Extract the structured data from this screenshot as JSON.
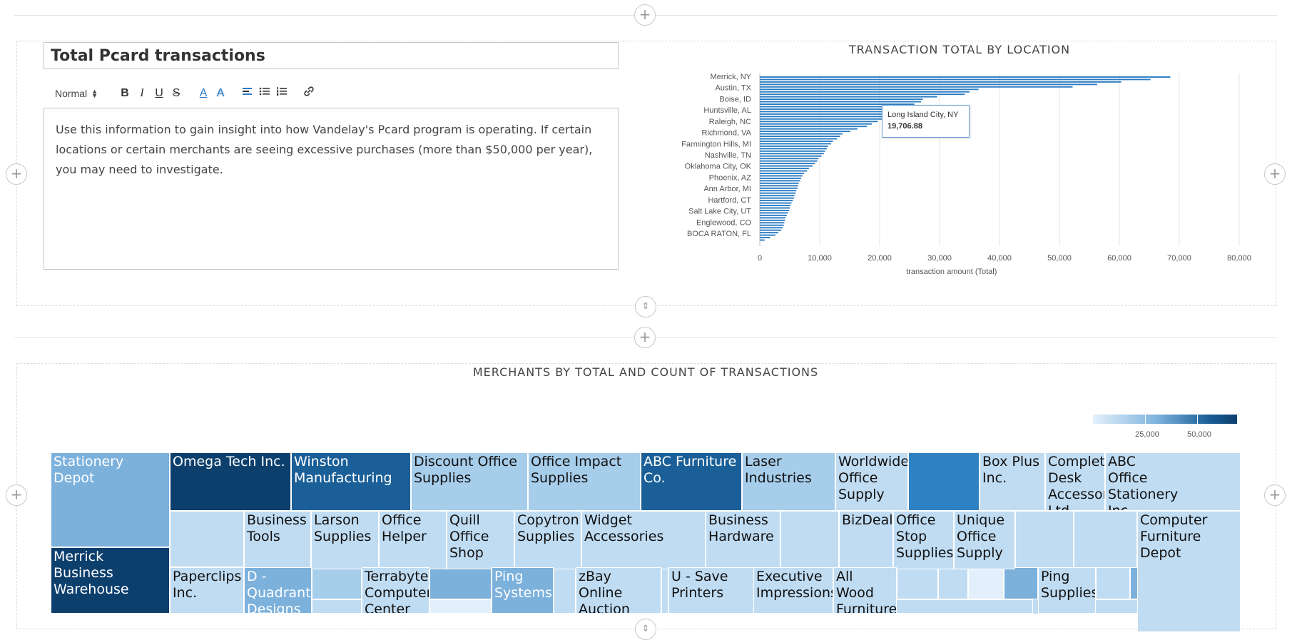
{
  "text_panel": {
    "title": "Total Pcard transactions",
    "toolbar": {
      "format_select": "Normal",
      "bold": "B",
      "italic": "I",
      "underline": "U",
      "strike": "S",
      "font_color": "A",
      "bg_color": "A"
    },
    "body": "Use this information to gain insight into how Vandelay's Pcard program is operating. If certain locations or certain merchants are seeing excessive purchases (more than $50,000 per year), you may need to investigate."
  },
  "bar_chart": {
    "title": "TRANSACTION TOTAL BY LOCATION",
    "y_tick_labels": [
      "Merrick, NY",
      "Austin, TX",
      "Boise, ID",
      "Huntsville, AL",
      "Raleigh, NC",
      "Richmond, VA",
      "Farmington Hills, MI",
      "Nashville, TN",
      "Oklahoma City, OK",
      "Phoenix, AZ",
      "Ann Arbor, MI",
      "Hartford, CT",
      "Salt Lake City, UT",
      "Englewood, CO",
      "BOCA RATON, FL"
    ],
    "x_tick_labels": [
      "0",
      "10,000",
      "20,000",
      "30,000",
      "40,000",
      "50,000",
      "60,000",
      "70,000",
      "80,000"
    ],
    "x_axis_label": "transaction amount (Total)",
    "tooltip": {
      "label": "Long Island City, NY",
      "value": "19,706.88"
    },
    "bar_color": "#2b7cc2"
  },
  "chart_data": {
    "type": "bar",
    "orientation": "horizontal",
    "title": "TRANSACTION TOTAL BY LOCATION",
    "xlabel": "transaction amount (Total)",
    "ylabel": "",
    "xlim": [
      0,
      80000
    ],
    "labeled_categories": [
      "Merrick, NY",
      "Austin, TX",
      "Boise, ID",
      "Huntsville, AL",
      "Raleigh, NC",
      "Richmond, VA",
      "Farmington Hills, MI",
      "Nashville, TN",
      "Oklahoma City, OK",
      "Phoenix, AZ",
      "Ann Arbor, MI",
      "Hartford, CT",
      "Salt Lake City, UT",
      "Englewood, CO",
      "BOCA RATON, FL"
    ],
    "values": [
      68500,
      65200,
      60300,
      56300,
      52200,
      36500,
      35000,
      34200,
      29600,
      27200,
      26900,
      25800,
      25200,
      24200,
      23300,
      21900,
      21100,
      20500,
      19706.88,
      18700,
      17900,
      16300,
      15100,
      13800,
      13400,
      12900,
      12200,
      11900,
      11400,
      11200,
      10900,
      10700,
      10300,
      9800,
      9600,
      9200,
      8800,
      8200,
      7900,
      7400,
      7100,
      6900,
      6700,
      6500,
      6400,
      6300,
      6100,
      6000,
      5800,
      5700,
      5500,
      5300,
      5100,
      5000,
      4900,
      4700,
      4500,
      4300,
      4200,
      4100,
      4000,
      3800,
      3600,
      3100,
      2600,
      1700,
      800
    ],
    "highlighted": {
      "category": "Long Island City, NY",
      "value": 19706.88
    },
    "grid": true
  },
  "treemap": {
    "title": "MERCHANTS BY TOTAL AND COUNT OF TRANSACTIONS",
    "legend": {
      "ticks": [
        "25,000",
        "50,000"
      ]
    },
    "cells": [
      {
        "name": "Stationery Depot",
        "lines": [
          "Stationery Depot"
        ],
        "shade": 3
      },
      {
        "name": "Omega Tech Inc.",
        "lines": [
          "Omega Tech Inc."
        ],
        "shade": 6
      },
      {
        "name": "Winston Manufacturing",
        "lines": [
          "Winston",
          "Manufacturing"
        ],
        "shade": 5
      },
      {
        "name": "Discount Office Supplies",
        "lines": [
          "Discount Office",
          "Supplies"
        ],
        "shade": 2
      },
      {
        "name": "Office Impact Supplies",
        "lines": [
          "Office Impact",
          "Supplies"
        ],
        "shade": 2
      },
      {
        "name": "ABC Furniture Co.",
        "lines": [
          "ABC Furniture",
          "Co."
        ],
        "shade": 5
      },
      {
        "name": "Laser Industries",
        "lines": [
          "Laser",
          "Industries"
        ],
        "shade": 2
      },
      {
        "name": "Worldwide Office Supply",
        "lines": [
          "Worldwide",
          "Office",
          "Supply"
        ],
        "shade": 1
      },
      {
        "name": "",
        "lines": [],
        "shade": 4
      },
      {
        "name": "Box Plus Inc.",
        "lines": [
          "Box Plus",
          "Inc."
        ],
        "shade": 1
      },
      {
        "name": "Complete Desk Accessories Ltd.",
        "lines": [
          "Complete",
          "Desk",
          "Accessories",
          "Ltd."
        ],
        "shade": 1
      },
      {
        "name": "ABC Office Stationery Inc.",
        "lines": [
          "ABC",
          "Office",
          "Stationery",
          "Inc."
        ],
        "shade": 1
      },
      {
        "name": "Merrick Business Warehouse",
        "lines": [
          "Merrick Business",
          "Warehouse"
        ],
        "shade": 6
      },
      {
        "name": "Business Tools",
        "lines": [
          "Business",
          "Tools"
        ],
        "shade": 1
      },
      {
        "name": "Larson Supplies",
        "lines": [
          "Larson",
          "Supplies"
        ],
        "shade": 1
      },
      {
        "name": "Office Helper",
        "lines": [
          "Office",
          "Helper"
        ],
        "shade": 1
      },
      {
        "name": "Quill Office Shop",
        "lines": [
          "Quill",
          "Office",
          "Shop"
        ],
        "shade": 1
      },
      {
        "name": "Copytron Supplies",
        "lines": [
          "Copytron",
          "Supplies"
        ],
        "shade": 1
      },
      {
        "name": "Widget Accessories",
        "lines": [
          "Widget",
          "Accessories"
        ],
        "shade": 1
      },
      {
        "name": "Business Hardware",
        "lines": [
          "Business",
          "Hardware"
        ],
        "shade": 1
      },
      {
        "name": "BizDeals",
        "lines": [
          "BizDeals"
        ],
        "shade": 1
      },
      {
        "name": "Office Stop Supplies",
        "lines": [
          "Office",
          "Stop",
          "Supplies"
        ],
        "shade": 1
      },
      {
        "name": "Unique Office Supply",
        "lines": [
          "Unique",
          "Office",
          "Supply"
        ],
        "shade": 1
      },
      {
        "name": "Computer Furniture Depot",
        "lines": [
          "Computer",
          "Furniture",
          "Depot"
        ],
        "shade": 1
      },
      {
        "name": "Paperclips Inc.",
        "lines": [
          "Paperclips",
          "Inc."
        ],
        "shade": 1
      },
      {
        "name": "D - Quadrant Designs",
        "lines": [
          "D -",
          "Quadrant",
          "Designs"
        ],
        "shade": 3
      },
      {
        "name": "Terrabyte Computer Center",
        "lines": [
          "Terrabyte",
          "Computer",
          "Center"
        ],
        "shade": 1
      },
      {
        "name": "Ping Systems",
        "lines": [
          "Ping",
          "Systems"
        ],
        "shade": 3
      },
      {
        "name": "zBay Online Auction",
        "lines": [
          "zBay",
          "Online",
          "Auction"
        ],
        "shade": 1
      },
      {
        "name": "U - Save Printers",
        "lines": [
          "U - Save",
          "Printers"
        ],
        "shade": 1
      },
      {
        "name": "Executive Impressions",
        "lines": [
          "Executive",
          "Impressions"
        ],
        "shade": 1
      },
      {
        "name": "All Wood Furniture",
        "lines": [
          "All",
          "Wood",
          "Furniture"
        ],
        "shade": 1
      },
      {
        "name": "Ping Supplies",
        "lines": [
          "Ping",
          "Supplies"
        ],
        "shade": 1
      }
    ]
  },
  "colors": {
    "shade_0": "#e3f0fb",
    "shade_1": "#c0dcf2",
    "shade_2": "#a6cdea",
    "shade_3": "#7cb1dc",
    "shade_4": "#2e82c4",
    "shade_5": "#1a5f97",
    "shade_6": "#0d3f6d"
  }
}
